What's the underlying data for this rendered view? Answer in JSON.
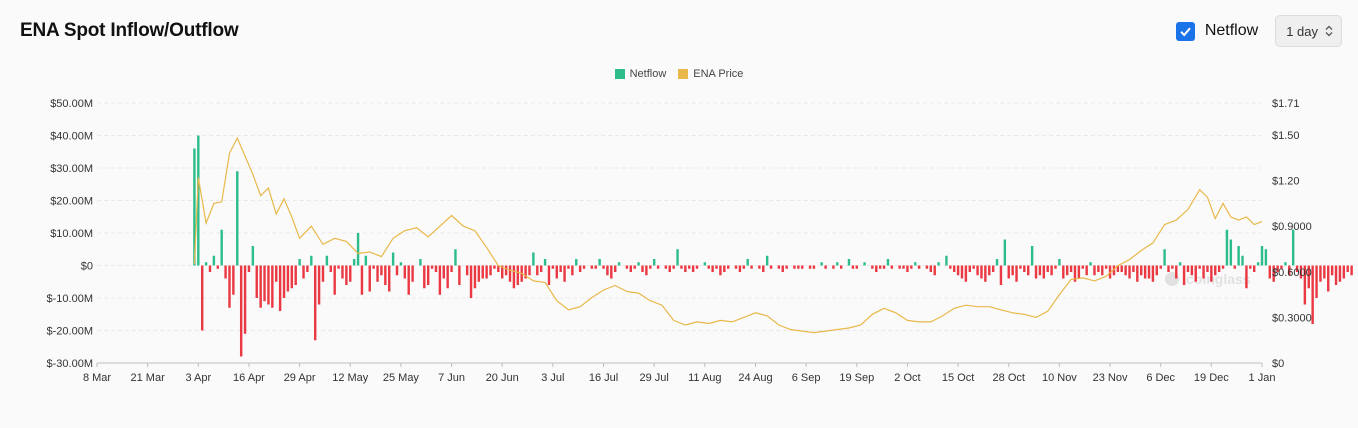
{
  "header": {
    "title": "ENA Spot Inflow/Outflow",
    "netflow_toggle_label": "Netflow",
    "netflow_checked": true,
    "interval_value": "1 day"
  },
  "colors": {
    "inflow": "#2dbd8a",
    "outflow": "#ea3943",
    "price": "#e8b84a",
    "checkbox": "#1a73e8"
  },
  "chart_data": {
    "type": "bar",
    "title": "",
    "legend": {
      "placement": "top-center",
      "entries": [
        "Netflow",
        "ENA Price"
      ]
    },
    "grid": true,
    "x_tick_labels": [
      "8 Mar",
      "21 Mar",
      "3 Apr",
      "16 Apr",
      "29 Apr",
      "12 May",
      "25 May",
      "7 Jun",
      "20 Jun",
      "3 Jul",
      "16 Jul",
      "29 Jul",
      "11 Aug",
      "24 Aug",
      "6 Sep",
      "19 Sep",
      "2 Oct",
      "15 Oct",
      "28 Oct",
      "10 Nov",
      "23 Nov",
      "6 Dec",
      "19 Dec",
      "1 Jan"
    ],
    "y_left": {
      "ticks": [
        "$-30.00M",
        "$-20.00M",
        "$-10.00M",
        "$0",
        "$10.00M",
        "$20.00M",
        "$30.00M",
        "$40.00M",
        "$50.00M"
      ],
      "ylim": [
        -30,
        50
      ],
      "unit": "USD millions"
    },
    "y_right": {
      "ticks": [
        "$0",
        "$0.3000",
        "$0.6000",
        "$0.9000",
        "$1.20",
        "$1.50",
        "$1.71"
      ],
      "ylim": [
        0,
        1.71
      ],
      "unit": "USD"
    },
    "series": [
      {
        "name": "Netflow",
        "kind": "bar",
        "x_start": "2024-04-02",
        "step_days": 1,
        "values": [
          36,
          40,
          -20,
          1,
          -2,
          3,
          -1,
          11,
          -4,
          -13,
          -9,
          29,
          -28,
          -21,
          -2,
          6,
          -10,
          -13,
          -11,
          -12,
          -13,
          -5,
          -14,
          -10,
          -8,
          -7,
          -6,
          2,
          -4,
          -2,
          3,
          -23,
          -12,
          -5,
          3,
          -2,
          -9,
          -1,
          -4,
          -6,
          -5,
          2,
          10,
          -9,
          3,
          -8,
          -1,
          -5,
          -3,
          -6,
          -8,
          4,
          -3,
          1,
          -4,
          -9,
          -5,
          0,
          2,
          -7,
          -6,
          -1,
          -2,
          -9,
          -4,
          -7,
          -2,
          5,
          -6,
          0,
          -3,
          -10,
          -7,
          -5,
          -4,
          -4,
          -3,
          -1,
          -2,
          -4,
          -3,
          -5,
          -7,
          -6,
          -5,
          -4,
          -3,
          4,
          -3,
          -2,
          2,
          -6,
          -1,
          -4,
          -2,
          -5,
          -1,
          -3,
          2,
          -2,
          -1,
          0,
          -1,
          -1,
          2,
          -1,
          -3,
          -4,
          -2,
          1,
          0,
          -1,
          -2,
          -1,
          1,
          -2,
          -3,
          -1,
          2,
          -1,
          0,
          -1,
          -2,
          -1,
          5,
          -1,
          -2,
          -1,
          -2,
          -1,
          0,
          1,
          -1,
          -2,
          -1,
          -3,
          -2,
          -1,
          0,
          -1,
          -2,
          -1,
          2,
          -1,
          0,
          -1,
          -2,
          3,
          -1,
          0,
          -1,
          -2,
          -1,
          0,
          -1,
          -1,
          -1,
          0,
          -1,
          -1,
          0,
          1,
          -1,
          0,
          -1,
          1,
          -1,
          0,
          2,
          -1,
          -1,
          0,
          1,
          0,
          -1,
          -2,
          -1,
          -1,
          2,
          -1,
          0,
          -1,
          -1,
          -2,
          -1,
          1,
          -1,
          0,
          -1,
          -2,
          -3,
          1,
          0,
          3,
          -1,
          -2,
          -3,
          -4,
          -5,
          -2,
          -1,
          -3,
          -4,
          -5,
          -3,
          -2,
          2,
          -6,
          8,
          -4,
          -3,
          -5,
          -1,
          -2,
          -3,
          6,
          -4,
          -3,
          -4,
          -2,
          -3,
          -1,
          2,
          -4,
          -3,
          -2,
          -5,
          -4,
          -1,
          -3,
          1,
          -3,
          -2,
          -3,
          -1,
          -4,
          -3,
          -2,
          -2,
          -3,
          -4,
          -2,
          -5,
          -3,
          -4,
          -4,
          -5,
          -3,
          -1,
          5,
          -2,
          -1,
          -4,
          1,
          -6,
          -2,
          -3,
          -5,
          -1,
          -4,
          -2,
          -5,
          -3,
          -2,
          -1,
          11,
          8,
          -1,
          6,
          3,
          -7,
          -1,
          -2,
          1,
          6,
          5,
          -4,
          -5,
          -2,
          -1,
          1,
          -3,
          11,
          -2,
          -4,
          -12,
          -7,
          -18,
          -10,
          -5,
          -4,
          -8,
          -3,
          -6,
          -5,
          -4,
          -2,
          -3
        ]
      },
      {
        "name": "ENA Price",
        "kind": "line",
        "points": [
          [
            "2024-04-02",
            0.65
          ],
          [
            "2024-04-03",
            1.22
          ],
          [
            "2024-04-05",
            0.92
          ],
          [
            "2024-04-07",
            1.05
          ],
          [
            "2024-04-09",
            1.06
          ],
          [
            "2024-04-11",
            1.38
          ],
          [
            "2024-04-13",
            1.48
          ],
          [
            "2024-04-15",
            1.36
          ],
          [
            "2024-04-17",
            1.24
          ],
          [
            "2024-04-19",
            1.1
          ],
          [
            "2024-04-21",
            1.15
          ],
          [
            "2024-04-23",
            0.98
          ],
          [
            "2024-04-25",
            1.08
          ],
          [
            "2024-04-27",
            0.96
          ],
          [
            "2024-04-29",
            0.82
          ],
          [
            "2024-05-02",
            0.9
          ],
          [
            "2024-05-05",
            0.78
          ],
          [
            "2024-05-08",
            0.82
          ],
          [
            "2024-05-11",
            0.8
          ],
          [
            "2024-05-14",
            0.72
          ],
          [
            "2024-05-17",
            0.73
          ],
          [
            "2024-05-20",
            0.7
          ],
          [
            "2024-05-23",
            0.82
          ],
          [
            "2024-05-26",
            0.87
          ],
          [
            "2024-05-29",
            0.89
          ],
          [
            "2024-06-01",
            0.83
          ],
          [
            "2024-06-04",
            0.9
          ],
          [
            "2024-06-07",
            0.97
          ],
          [
            "2024-06-10",
            0.9
          ],
          [
            "2024-06-13",
            0.87
          ],
          [
            "2024-06-16",
            0.76
          ],
          [
            "2024-06-19",
            0.64
          ],
          [
            "2024-06-22",
            0.61
          ],
          [
            "2024-06-25",
            0.59
          ],
          [
            "2024-06-28",
            0.54
          ],
          [
            "2024-07-01",
            0.53
          ],
          [
            "2024-07-04",
            0.41
          ],
          [
            "2024-07-07",
            0.35
          ],
          [
            "2024-07-10",
            0.37
          ],
          [
            "2024-07-13",
            0.43
          ],
          [
            "2024-07-16",
            0.48
          ],
          [
            "2024-07-19",
            0.51
          ],
          [
            "2024-07-22",
            0.47
          ],
          [
            "2024-07-25",
            0.46
          ],
          [
            "2024-07-28",
            0.41
          ],
          [
            "2024-07-31",
            0.38
          ],
          [
            "2024-08-03",
            0.28
          ],
          [
            "2024-08-06",
            0.25
          ],
          [
            "2024-08-09",
            0.27
          ],
          [
            "2024-08-12",
            0.26
          ],
          [
            "2024-08-15",
            0.28
          ],
          [
            "2024-08-18",
            0.27
          ],
          [
            "2024-08-21",
            0.3
          ],
          [
            "2024-08-24",
            0.33
          ],
          [
            "2024-08-27",
            0.31
          ],
          [
            "2024-08-30",
            0.25
          ],
          [
            "2024-09-02",
            0.22
          ],
          [
            "2024-09-05",
            0.21
          ],
          [
            "2024-09-08",
            0.2
          ],
          [
            "2024-09-11",
            0.21
          ],
          [
            "2024-09-14",
            0.22
          ],
          [
            "2024-09-17",
            0.23
          ],
          [
            "2024-09-20",
            0.25
          ],
          [
            "2024-09-23",
            0.32
          ],
          [
            "2024-09-26",
            0.36
          ],
          [
            "2024-09-29",
            0.33
          ],
          [
            "2024-10-02",
            0.28
          ],
          [
            "2024-10-05",
            0.27
          ],
          [
            "2024-10-08",
            0.27
          ],
          [
            "2024-10-11",
            0.31
          ],
          [
            "2024-10-14",
            0.36
          ],
          [
            "2024-10-17",
            0.38
          ],
          [
            "2024-10-20",
            0.37
          ],
          [
            "2024-10-23",
            0.37
          ],
          [
            "2024-10-26",
            0.35
          ],
          [
            "2024-10-29",
            0.33
          ],
          [
            "2024-11-01",
            0.32
          ],
          [
            "2024-11-04",
            0.3
          ],
          [
            "2024-11-07",
            0.34
          ],
          [
            "2024-11-10",
            0.45
          ],
          [
            "2024-11-13",
            0.55
          ],
          [
            "2024-11-16",
            0.56
          ],
          [
            "2024-11-19",
            0.54
          ],
          [
            "2024-11-22",
            0.57
          ],
          [
            "2024-11-25",
            0.64
          ],
          [
            "2024-11-28",
            0.68
          ],
          [
            "2024-12-01",
            0.74
          ],
          [
            "2024-12-04",
            0.79
          ],
          [
            "2024-12-07",
            0.91
          ],
          [
            "2024-12-10",
            0.94
          ],
          [
            "2024-12-13",
            1.01
          ],
          [
            "2024-12-16",
            1.14
          ],
          [
            "2024-12-18",
            1.09
          ],
          [
            "2024-12-20",
            0.95
          ],
          [
            "2024-12-22",
            1.05
          ],
          [
            "2024-12-24",
            0.96
          ],
          [
            "2024-12-26",
            0.94
          ],
          [
            "2024-12-28",
            0.96
          ],
          [
            "2024-12-30",
            0.91
          ],
          [
            "2025-01-01",
            0.93
          ]
        ]
      }
    ]
  }
}
